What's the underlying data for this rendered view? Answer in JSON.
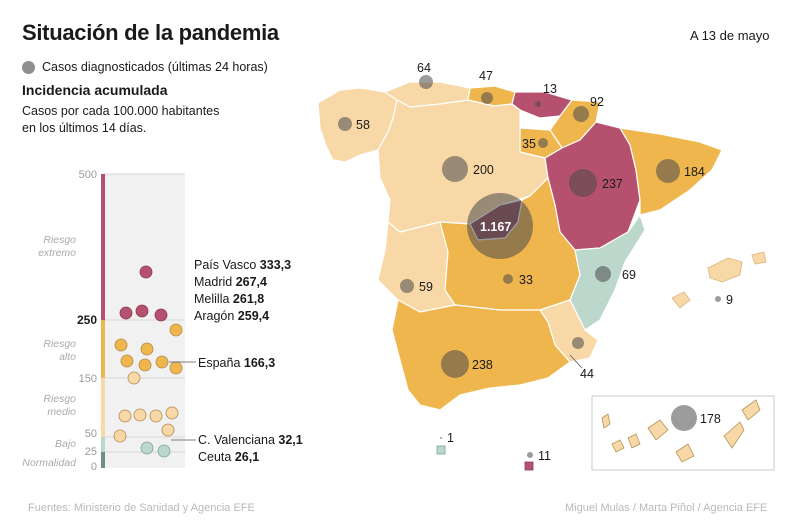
{
  "header": {
    "title": "Situación de la pandemia",
    "date": "A 13  de mayo"
  },
  "legend": {
    "bubble_label": "Casos diagnosticados (últimas 24 horas)",
    "bubble_color": "#8f8f8f",
    "incidence_title": "Incidencia acumulada",
    "incidence_line1": "Casos por cada 100.000 habitantes",
    "incidence_line2": "en los últimos 14 días."
  },
  "scale": {
    "ticks": [
      "500",
      "250",
      "150",
      "50",
      "25",
      "0"
    ],
    "bands": [
      "Riesgo extremo",
      "Riesgo alto",
      "Riesgo medio",
      "Bajo",
      "Normalidad"
    ],
    "colors": {
      "extremo": "#b5516f",
      "alto": "#f0b64e",
      "medio": "#f7d8a6",
      "bajo": "#bcd8cd",
      "normalidad": "#6e8f86"
    },
    "highlights": [
      {
        "name": "País Vasco",
        "value": "333,3"
      },
      {
        "name": "Madrid",
        "value": "267,4"
      },
      {
        "name": "Melilla",
        "value": "261,8"
      },
      {
        "name": "Aragón",
        "value": "259,4"
      },
      {
        "name": "España",
        "value": "166,3"
      },
      {
        "name": "C. Valenciana",
        "value": "32,1"
      },
      {
        "name": "Ceuta",
        "value": "26,1"
      }
    ]
  },
  "regions": [
    {
      "name": "Galicia",
      "cases": "58",
      "fill": "#f7d8a6"
    },
    {
      "name": "Asturias",
      "cases": "64",
      "fill": "#f7d8a6"
    },
    {
      "name": "Cantabria",
      "cases": "47",
      "fill": "#f0b64e"
    },
    {
      "name": "País Vasco",
      "cases": "13",
      "fill": "#b5516f"
    },
    {
      "name": "Navarra",
      "cases": "92",
      "fill": "#f0b64e"
    },
    {
      "name": "La Rioja",
      "cases": "35",
      "fill": "#f0b64e"
    },
    {
      "name": "Castilla y León",
      "cases": "200",
      "fill": "#f7d8a6"
    },
    {
      "name": "Aragón",
      "cases": "237",
      "fill": "#b5516f"
    },
    {
      "name": "Cataluña",
      "cases": "184",
      "fill": "#f0b64e"
    },
    {
      "name": "Madrid",
      "cases": "1.167",
      "fill": "#8e4a5e"
    },
    {
      "name": "Extremadura",
      "cases": "59",
      "fill": "#f7d8a6"
    },
    {
      "name": "Castilla-La Mancha",
      "cases": "33",
      "fill": "#f0b64e"
    },
    {
      "name": "C. Valenciana",
      "cases": "69",
      "fill": "#bcd8cd"
    },
    {
      "name": "Baleares",
      "cases": "9",
      "fill": "#f7d8a6"
    },
    {
      "name": "Murcia",
      "cases": "44",
      "fill": "#f7d8a6"
    },
    {
      "name": "Andalucía",
      "cases": "238",
      "fill": "#f0b64e"
    },
    {
      "name": "Canarias",
      "cases": "178",
      "fill": "#f7d8a6"
    },
    {
      "name": "Ceuta",
      "cases": "1",
      "fill": "#bcd8cd"
    },
    {
      "name": "Melilla",
      "cases": "11",
      "fill": "#b5516f"
    }
  ],
  "footer": {
    "sources": "Fuentes: Ministerio de Sanidad y Agencia EFE",
    "credits": "Miguel Mulas / Marta Piñol / Agencia EFE"
  }
}
